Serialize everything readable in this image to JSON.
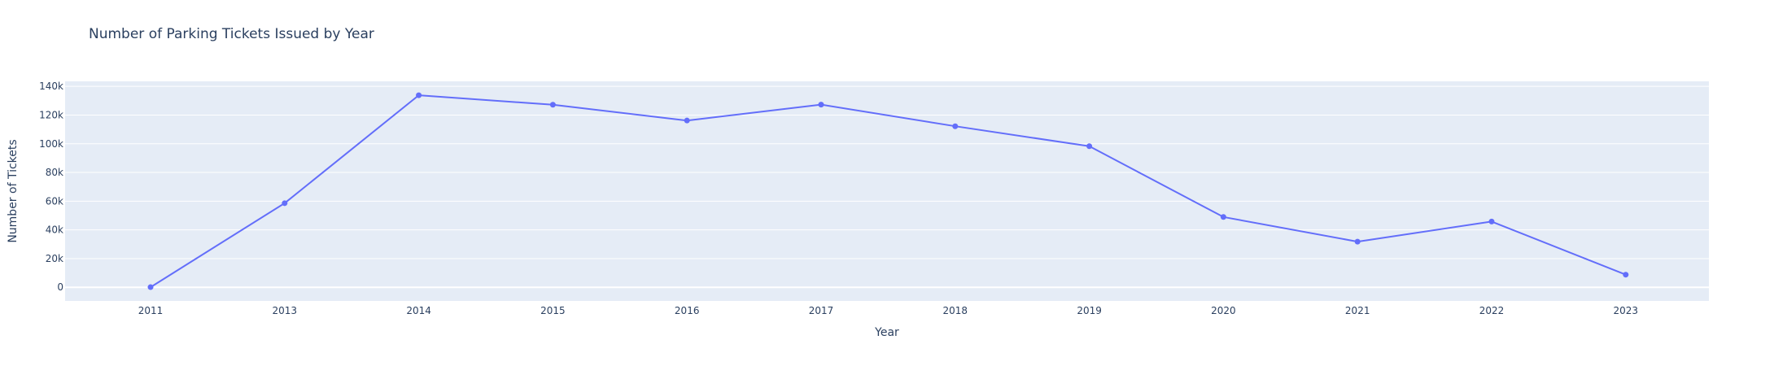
{
  "chart_data": {
    "type": "line",
    "title": "Number of Parking Tickets Issued by Year",
    "xlabel": "Year",
    "ylabel": "Number of Tickets",
    "categories": [
      "2011",
      "2013",
      "2014",
      "2015",
      "2016",
      "2017",
      "2018",
      "2019",
      "2020",
      "2021",
      "2022",
      "2023"
    ],
    "series": [
      {
        "values": [
          100,
          58600,
          133800,
          127200,
          116200,
          127300,
          112200,
          98300,
          49000,
          31800,
          45800,
          8800
        ]
      }
    ],
    "ylim": [
      -9500,
      143500
    ],
    "yticks": [
      0,
      20000,
      40000,
      60000,
      80000,
      100000,
      120000,
      140000
    ],
    "ytick_labels": [
      "0",
      "20k",
      "40k",
      "60k",
      "80k",
      "100k",
      "120k",
      "140k"
    ],
    "grid": true,
    "legend": false,
    "colors": {
      "line": "#636efa",
      "plot_bg": "#e5ecf6",
      "grid": "#ffffff",
      "text": "#2a3f5f"
    }
  }
}
